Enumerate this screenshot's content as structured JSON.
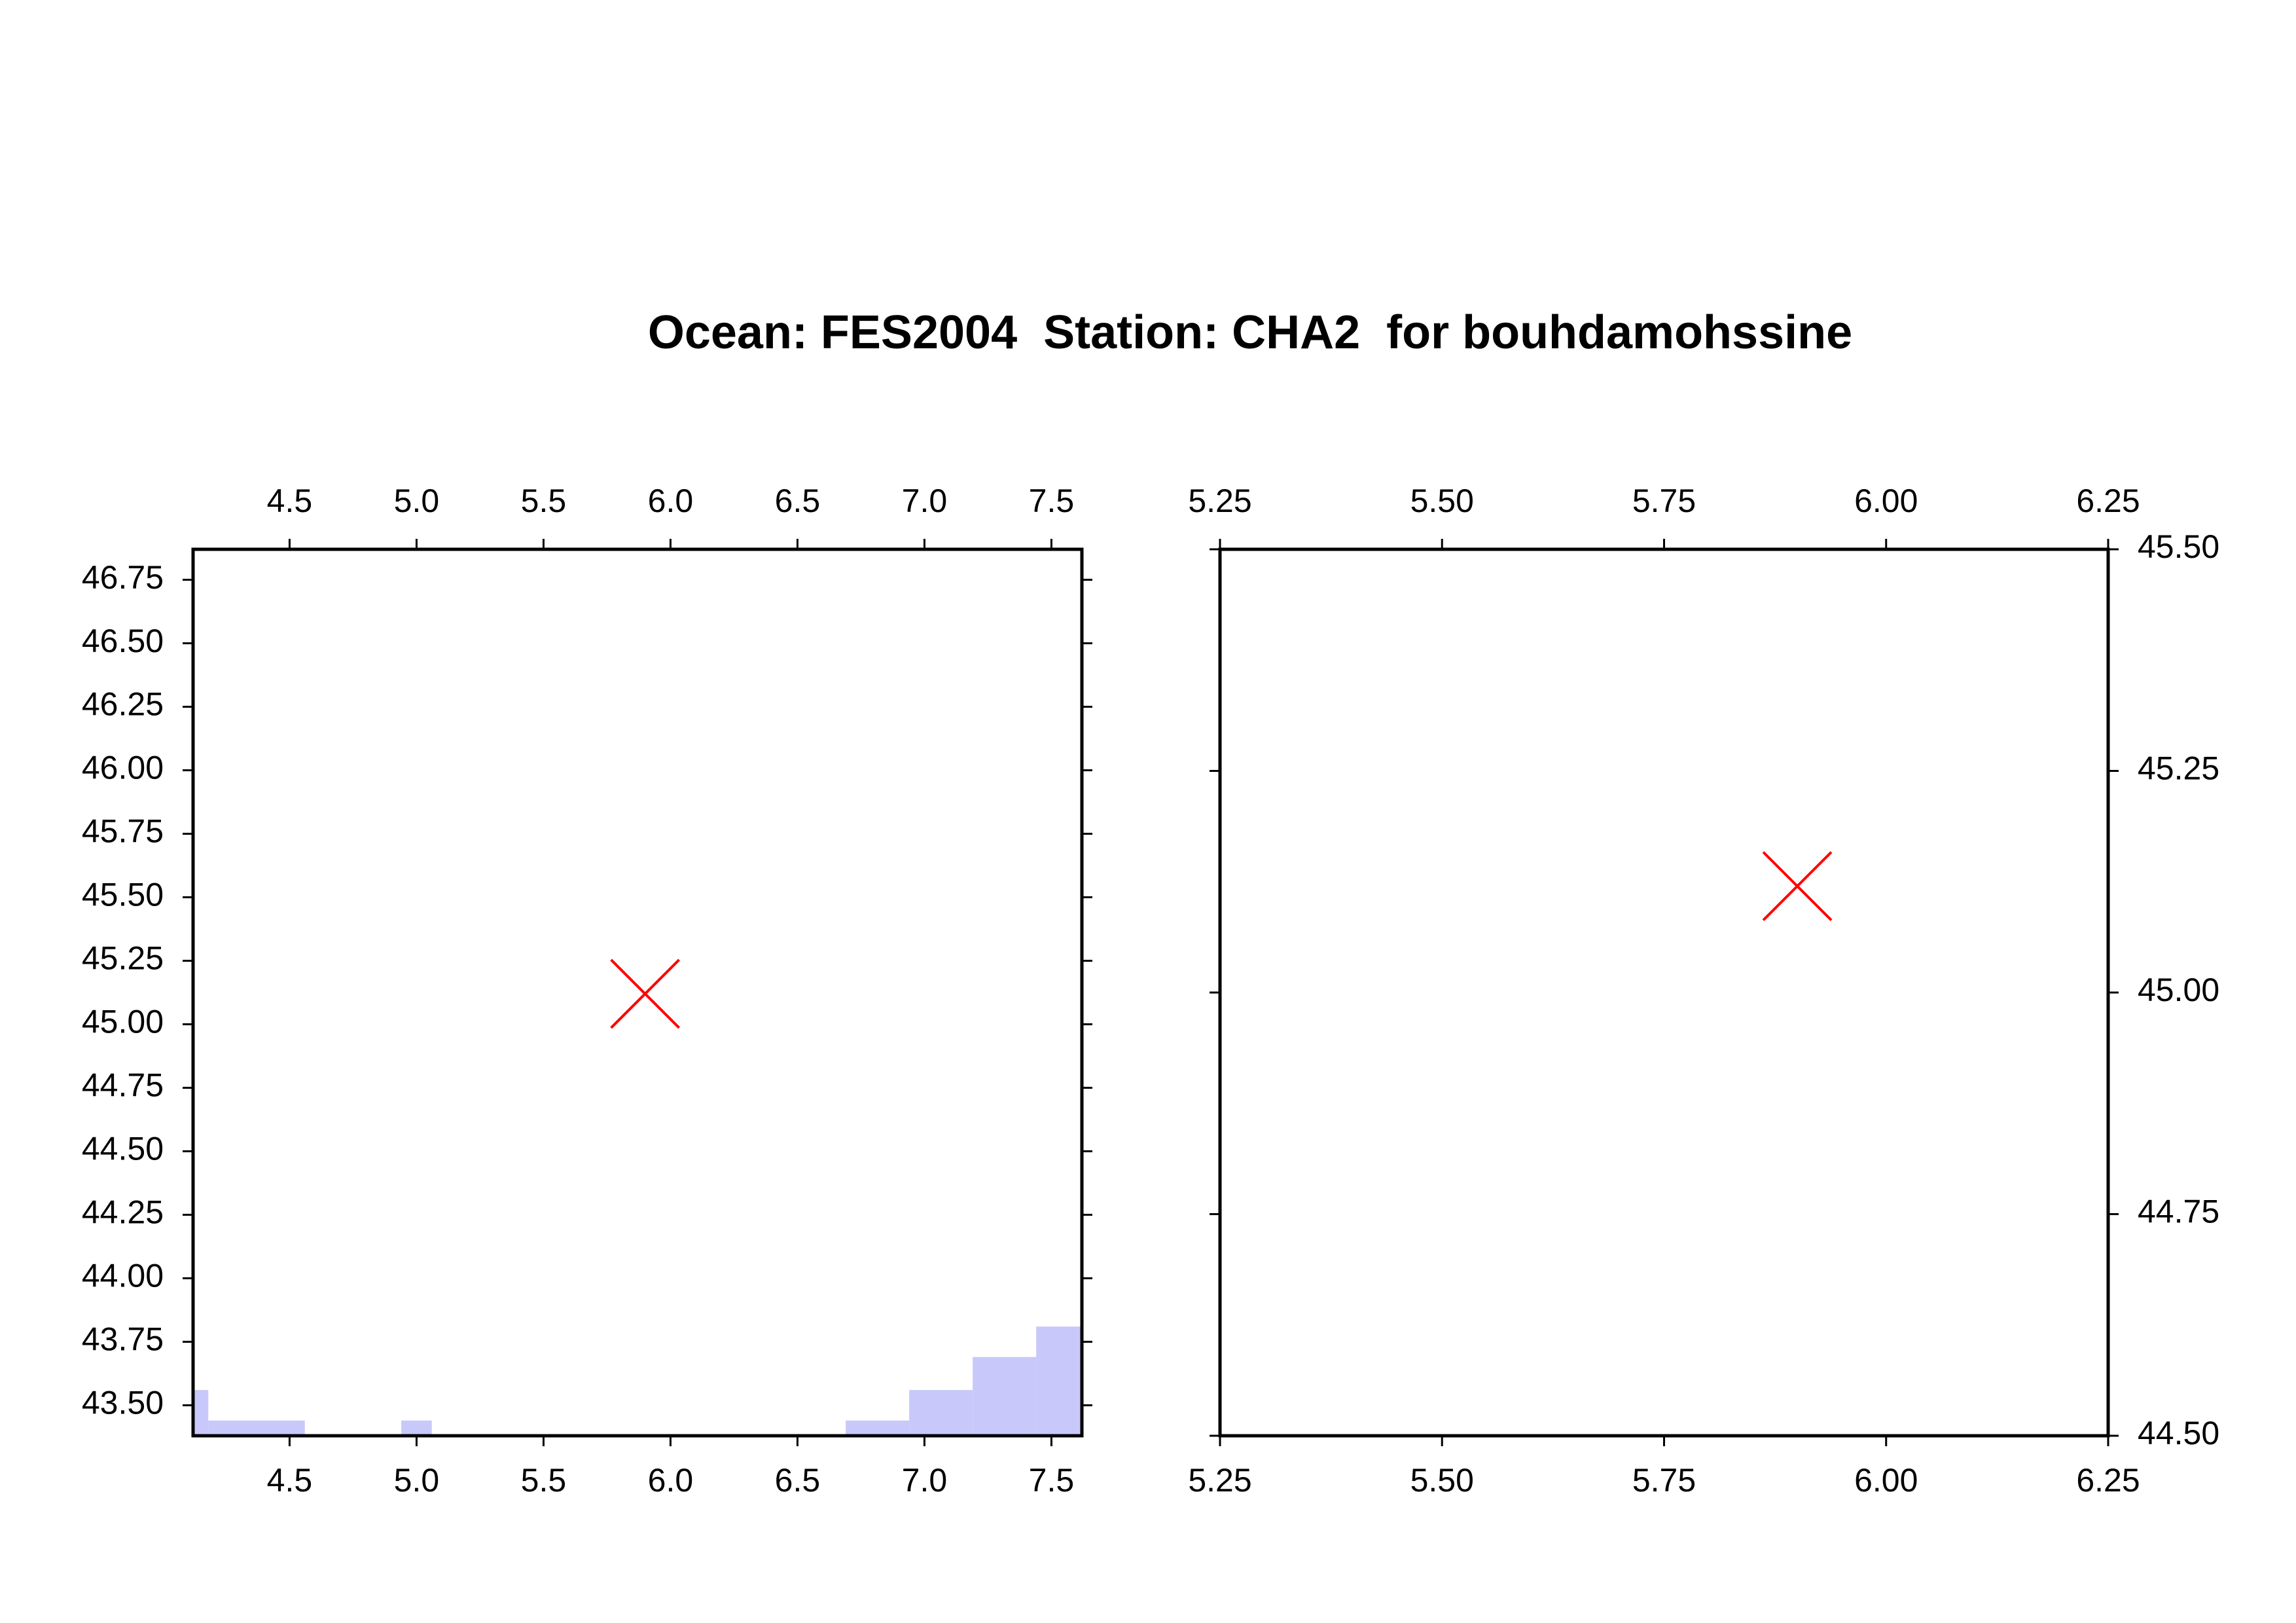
{
  "title": "Ocean: FES2004  Station: CHA2  for bouhdamohssine",
  "chart_data": [
    {
      "type": "map",
      "xlim": [
        4.12,
        7.62
      ],
      "ylim": [
        43.38,
        46.87
      ],
      "xticks": [
        {
          "value": 4.5,
          "label": "4.5"
        },
        {
          "value": 5,
          "label": "5.0"
        },
        {
          "value": 5.5,
          "label": "5.5"
        },
        {
          "value": 6,
          "label": "6.0"
        },
        {
          "value": 6.5,
          "label": "6.5"
        },
        {
          "value": 7,
          "label": "7.0"
        },
        {
          "value": 7.5,
          "label": "7.5"
        }
      ],
      "yticks": [
        {
          "value": 43.5,
          "label": "43.50"
        },
        43.75,
        {
          "value": 44,
          "label": "44.00"
        },
        44.25,
        {
          "value": 44.5,
          "label": "44.50"
        },
        44.75,
        {
          "value": 45,
          "label": "45.00"
        },
        45.25,
        {
          "value": 45.5,
          "label": "45.50"
        },
        45.75,
        {
          "value": 46,
          "label": "46.00"
        },
        46.25,
        {
          "value": 46.5,
          "label": "46.50"
        },
        46.75
      ],
      "ytick_side": "left",
      "ocean_cells": {
        "color": "#c8c8fa",
        "x": [
          [
            4.12,
            4.18
          ],
          [
            4.18,
            4.56
          ],
          [
            4.94,
            5.06
          ],
          [
            6.69,
            6.94
          ],
          [
            6.94,
            7.19
          ],
          [
            7.19,
            7.44
          ],
          [
            7.44,
            7.62
          ]
        ],
        "y": [
          [
            43.38,
            43.56
          ],
          [
            43.38,
            43.44
          ],
          [
            43.38,
            43.44
          ],
          [
            43.38,
            43.44
          ],
          [
            43.38,
            43.56
          ],
          [
            43.38,
            43.69
          ],
          [
            43.38,
            43.81
          ]
        ]
      },
      "x": [
        5.9
      ],
      "values": [
        45.12
      ],
      "color": "#ff0000",
      "marker": "x"
    },
    {
      "type": "map",
      "xlim": [
        5.25,
        6.25
      ],
      "ylim": [
        44.5,
        45.5
      ],
      "xticks": [
        5.25,
        {
          "value": 5.5,
          "label": "5.50"
        },
        5.75,
        {
          "value": 6,
          "label": "6.00"
        },
        6.25
      ],
      "yticks": [
        {
          "value": 44.5,
          "label": "44.50"
        },
        44.75,
        {
          "value": 45,
          "label": "45.00"
        },
        45.25,
        {
          "value": 45.5,
          "label": "45.50"
        }
      ],
      "ytick_side": "right",
      "x": [
        5.9
      ],
      "values": [
        45.12
      ],
      "color": "#ff0000",
      "marker": "x"
    }
  ]
}
